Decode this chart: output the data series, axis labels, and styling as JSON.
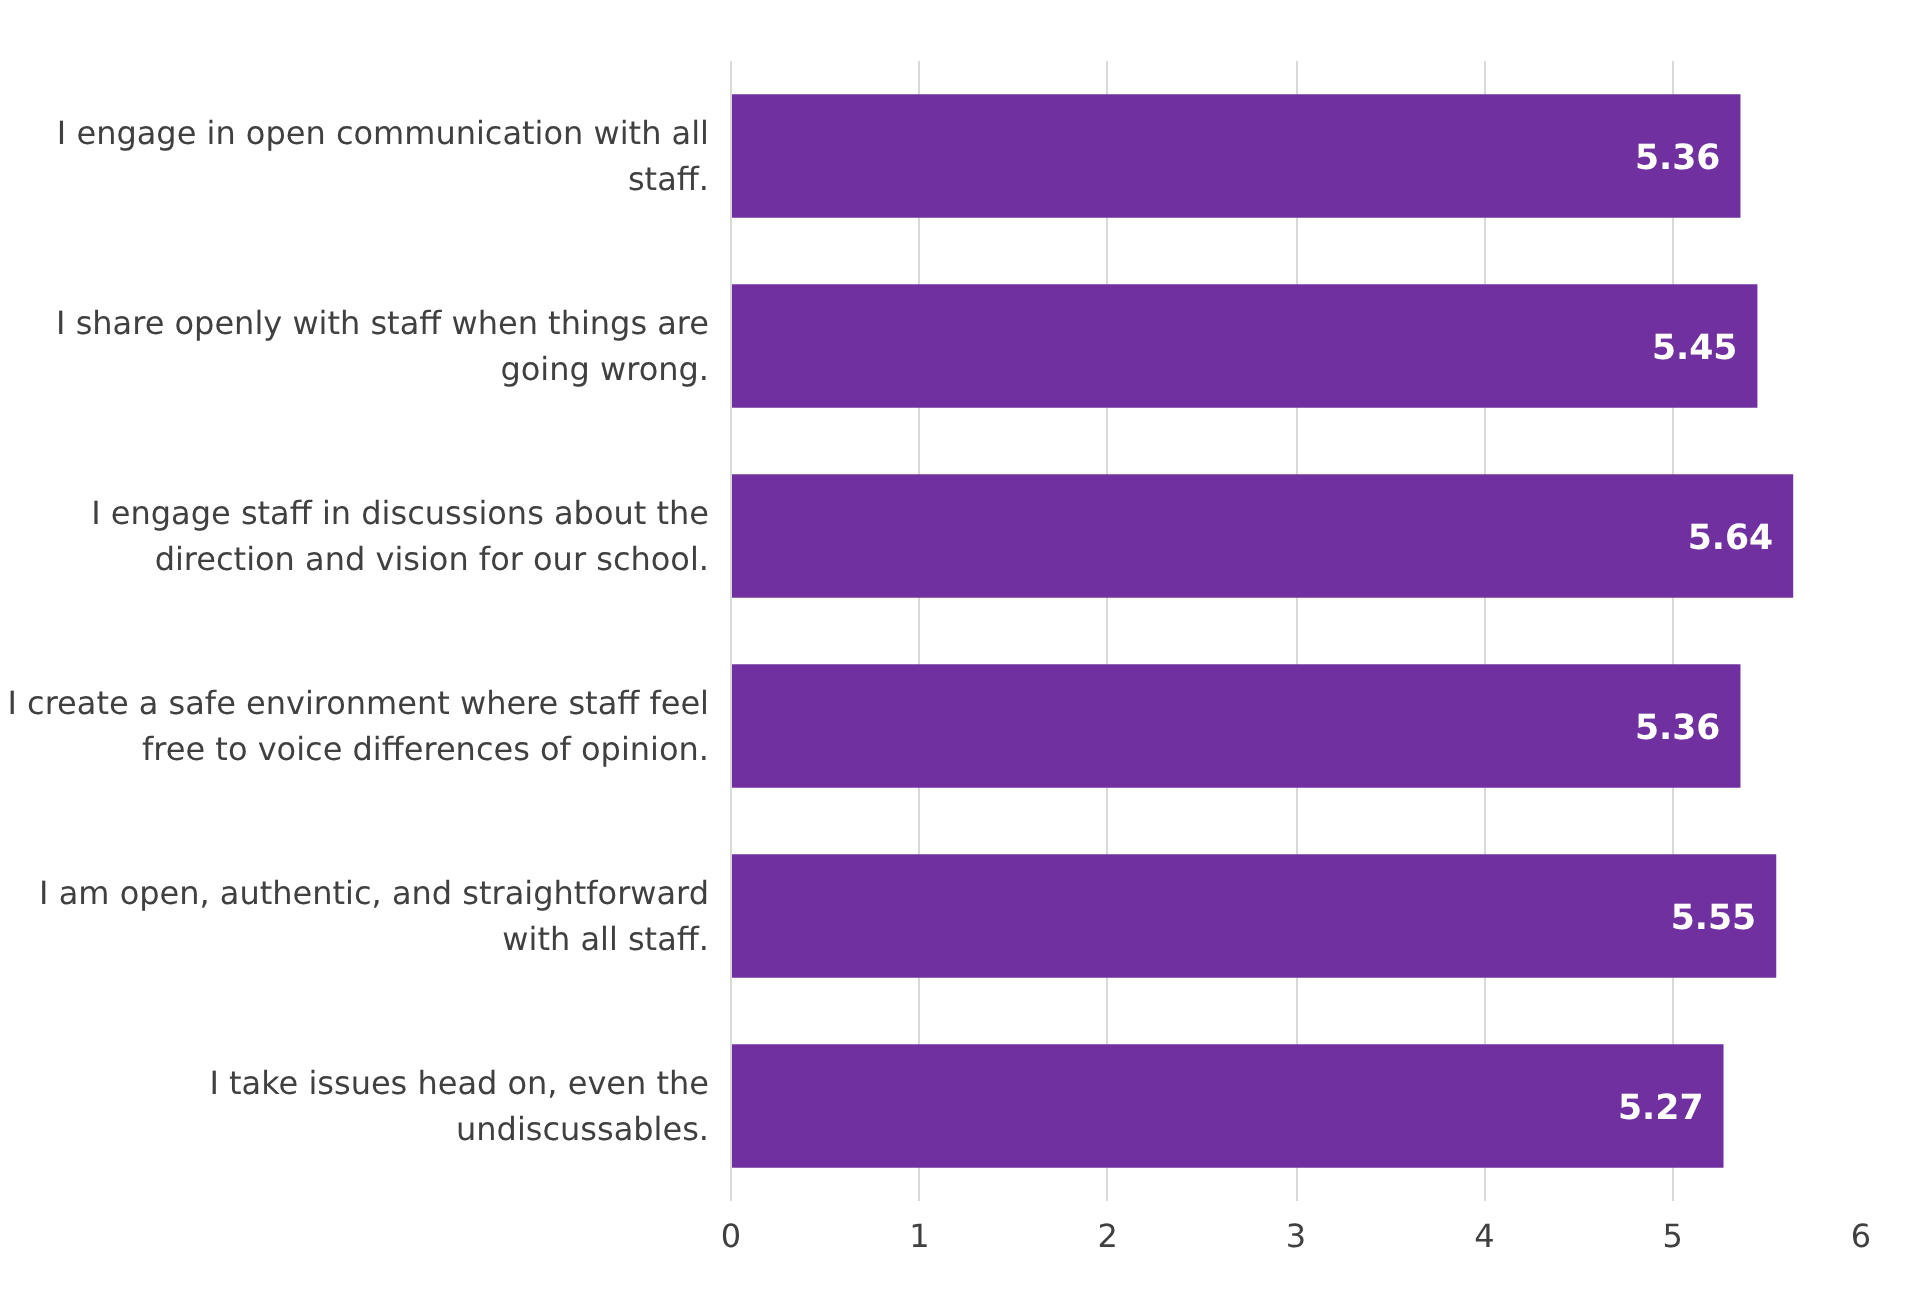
{
  "chart_data": {
    "type": "bar",
    "orientation": "horizontal",
    "categories": [
      "I engage in open communication with all staff.",
      "I share openly with staff when things are going wrong.",
      "I engage staff in discussions about the direction and vision for our school.",
      "I create a safe environment where staff feel free to voice differences of opinion.",
      "I am open, authentic, and straightforward with all staff.",
      "I take issues head on, even the undiscussables."
    ],
    "values": [
      5.36,
      5.45,
      5.64,
      5.36,
      5.55,
      5.27
    ],
    "color": "#7030a0",
    "xlim": [
      0,
      6
    ],
    "xticks": [
      0,
      1,
      2,
      3,
      4,
      5,
      6
    ],
    "grid": "x",
    "data_labels": true
  }
}
